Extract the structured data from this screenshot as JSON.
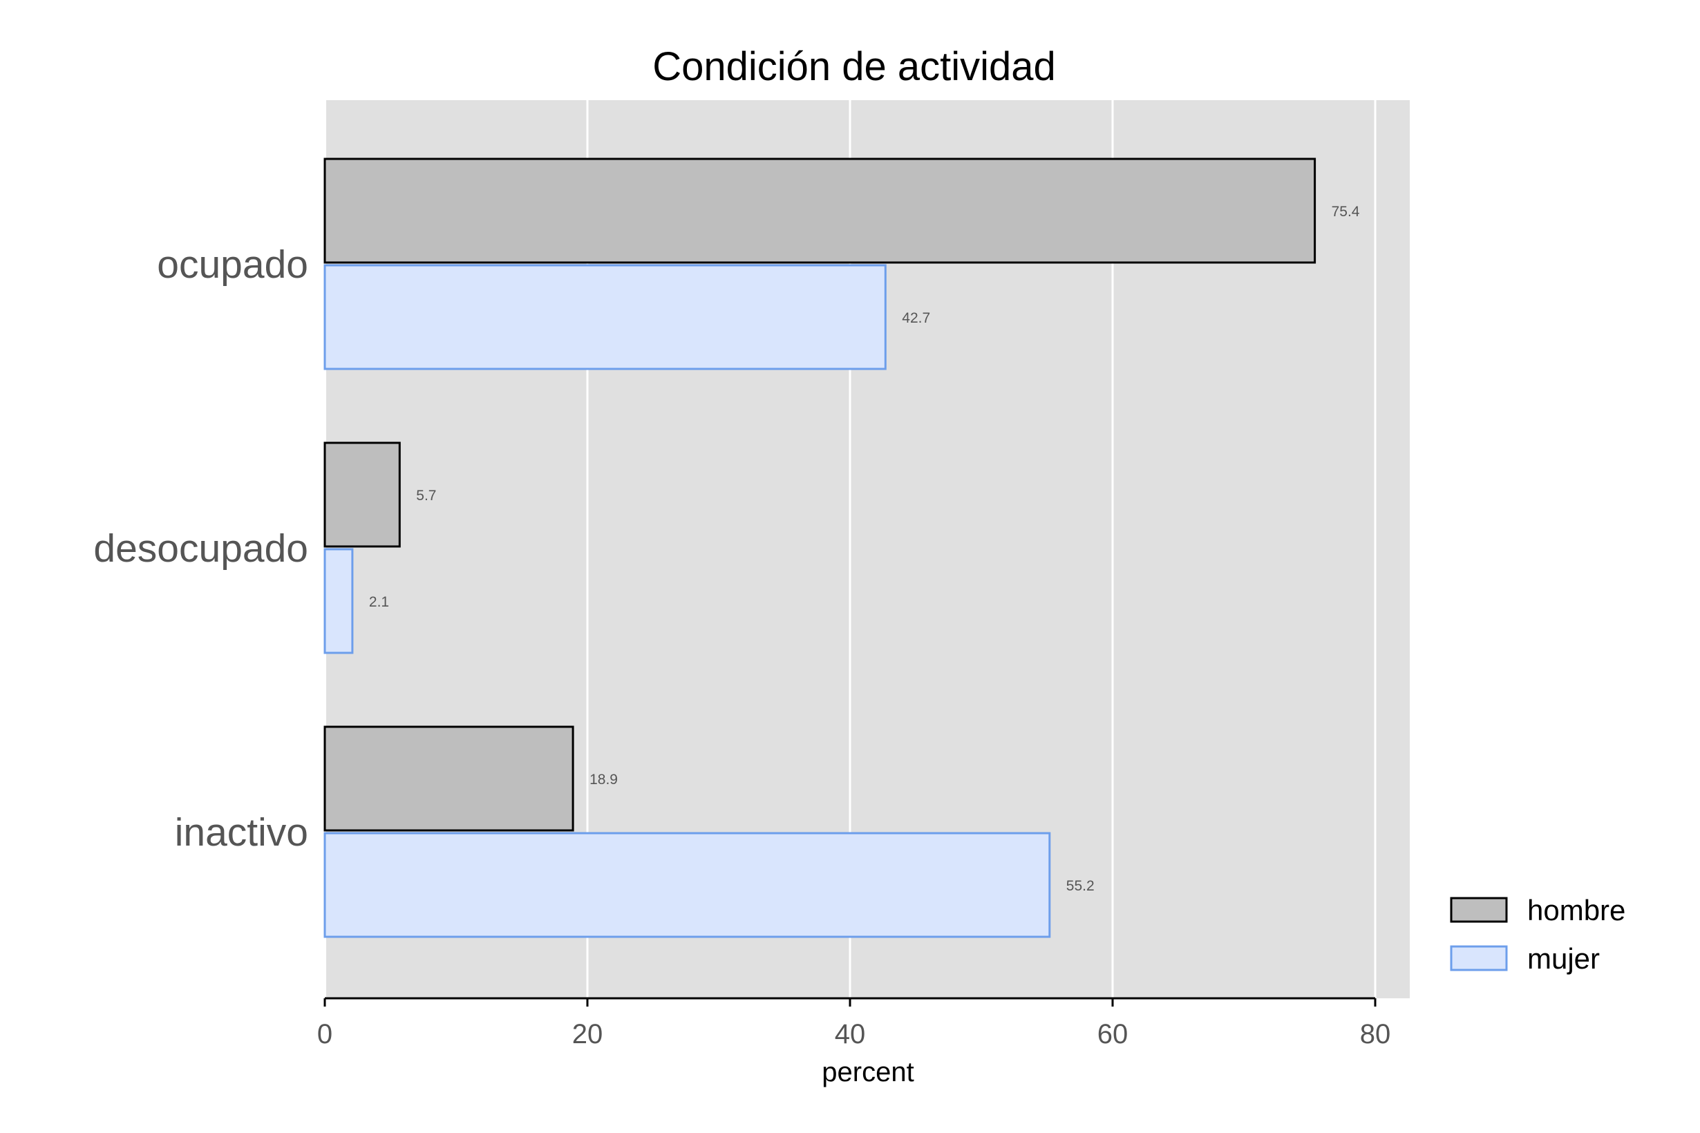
{
  "chart_data": {
    "type": "bar",
    "orientation": "horizontal",
    "title": "Condición de actividad",
    "xlabel": "percent",
    "ylabel": "",
    "categories": [
      "ocupado",
      "desocupado",
      "inactivo"
    ],
    "series": [
      {
        "name": "hombre",
        "values": [
          75.4,
          5.7,
          18.9
        ],
        "fill": "#bebebe",
        "stroke": "#000000"
      },
      {
        "name": "mujer",
        "values": [
          42.7,
          2.1,
          55.2
        ],
        "fill": "#d9e5fd",
        "stroke": "#6d9eeb"
      }
    ],
    "value_labels": [
      "75.4",
      "42.7",
      "5.7",
      "2.1",
      "18.9",
      "55.2"
    ],
    "xlim": [
      0,
      83
    ],
    "xticks": [
      0,
      20,
      40,
      60,
      80
    ],
    "xtick_labels": [
      "0",
      "20",
      "40",
      "60",
      "80"
    ],
    "grid": "vertical",
    "panel_background": "#e0e0e0",
    "legend_position": "right-bottom"
  }
}
